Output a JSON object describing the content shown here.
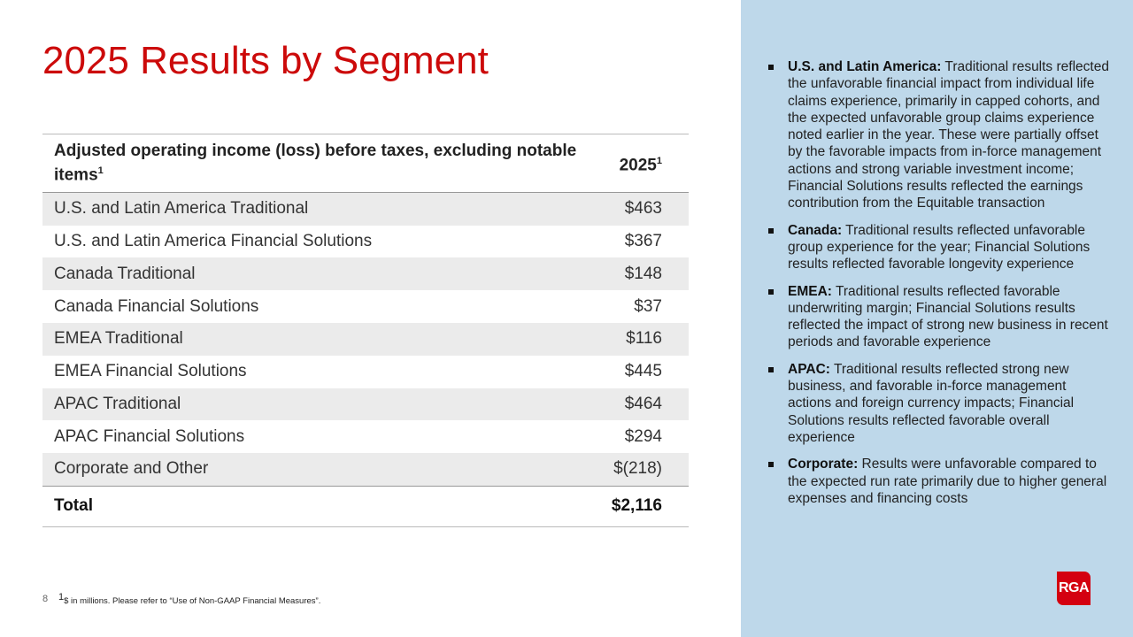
{
  "title": "2025 Results by Segment",
  "table": {
    "header": {
      "label": "Adjusted operating income (loss) before taxes, excluding notable items",
      "label_sup": "1",
      "year": "2025",
      "year_sup": "1"
    },
    "rows": [
      {
        "segment": "U.S. and Latin America Traditional",
        "value": "$463"
      },
      {
        "segment": "U.S. and Latin America Financial Solutions",
        "value": "$367"
      },
      {
        "segment": "Canada Traditional",
        "value": "$148"
      },
      {
        "segment": "Canada Financial Solutions",
        "value": "$37"
      },
      {
        "segment": "EMEA Traditional",
        "value": "$116"
      },
      {
        "segment": "EMEA Financial Solutions",
        "value": "$445"
      },
      {
        "segment": "APAC Traditional",
        "value": "$464"
      },
      {
        "segment": "APAC Financial Solutions",
        "value": "$294"
      },
      {
        "segment": "Corporate and Other",
        "value": "$(218)"
      }
    ],
    "total": {
      "segment": "Total",
      "value": "$2,116"
    }
  },
  "bullets": [
    {
      "head": "U.S. and Latin America:",
      "text": " Traditional results reflected the unfavorable financial impact from individual life claims experience, primarily in capped cohorts, and the expected unfavorable group claims experience noted earlier in the year. These were partially offset by the favorable impacts from in-force management actions and strong variable investment income; Financial Solutions results reflected the earnings contribution from the Equitable transaction"
    },
    {
      "head": "Canada:",
      "text": " Traditional results reflected unfavorable group experience for the year; Financial Solutions results reflected favorable longevity experience"
    },
    {
      "head": "EMEA:",
      "text": " Traditional results reflected favorable underwriting margin; Financial Solutions results reflected the impact of strong new business in recent periods and favorable experience"
    },
    {
      "head": "APAC:",
      "text": " Traditional results reflected strong new business, and favorable in-force management actions and foreign currency impacts; Financial Solutions results reflected favorable overall experience"
    },
    {
      "head": "Corporate:",
      "text": " Results were unfavorable compared to the expected run rate primarily due to higher general expenses and financing costs"
    }
  ],
  "footer": {
    "page": "8",
    "note_sup": "1",
    "note": "$ in millions. Please refer to “Use of Non-GAAP Financial Measures”."
  },
  "logo": "RGA",
  "colors": {
    "accent": "#cc0a0a",
    "panel": "#bed8ea",
    "logo": "#d40010"
  }
}
